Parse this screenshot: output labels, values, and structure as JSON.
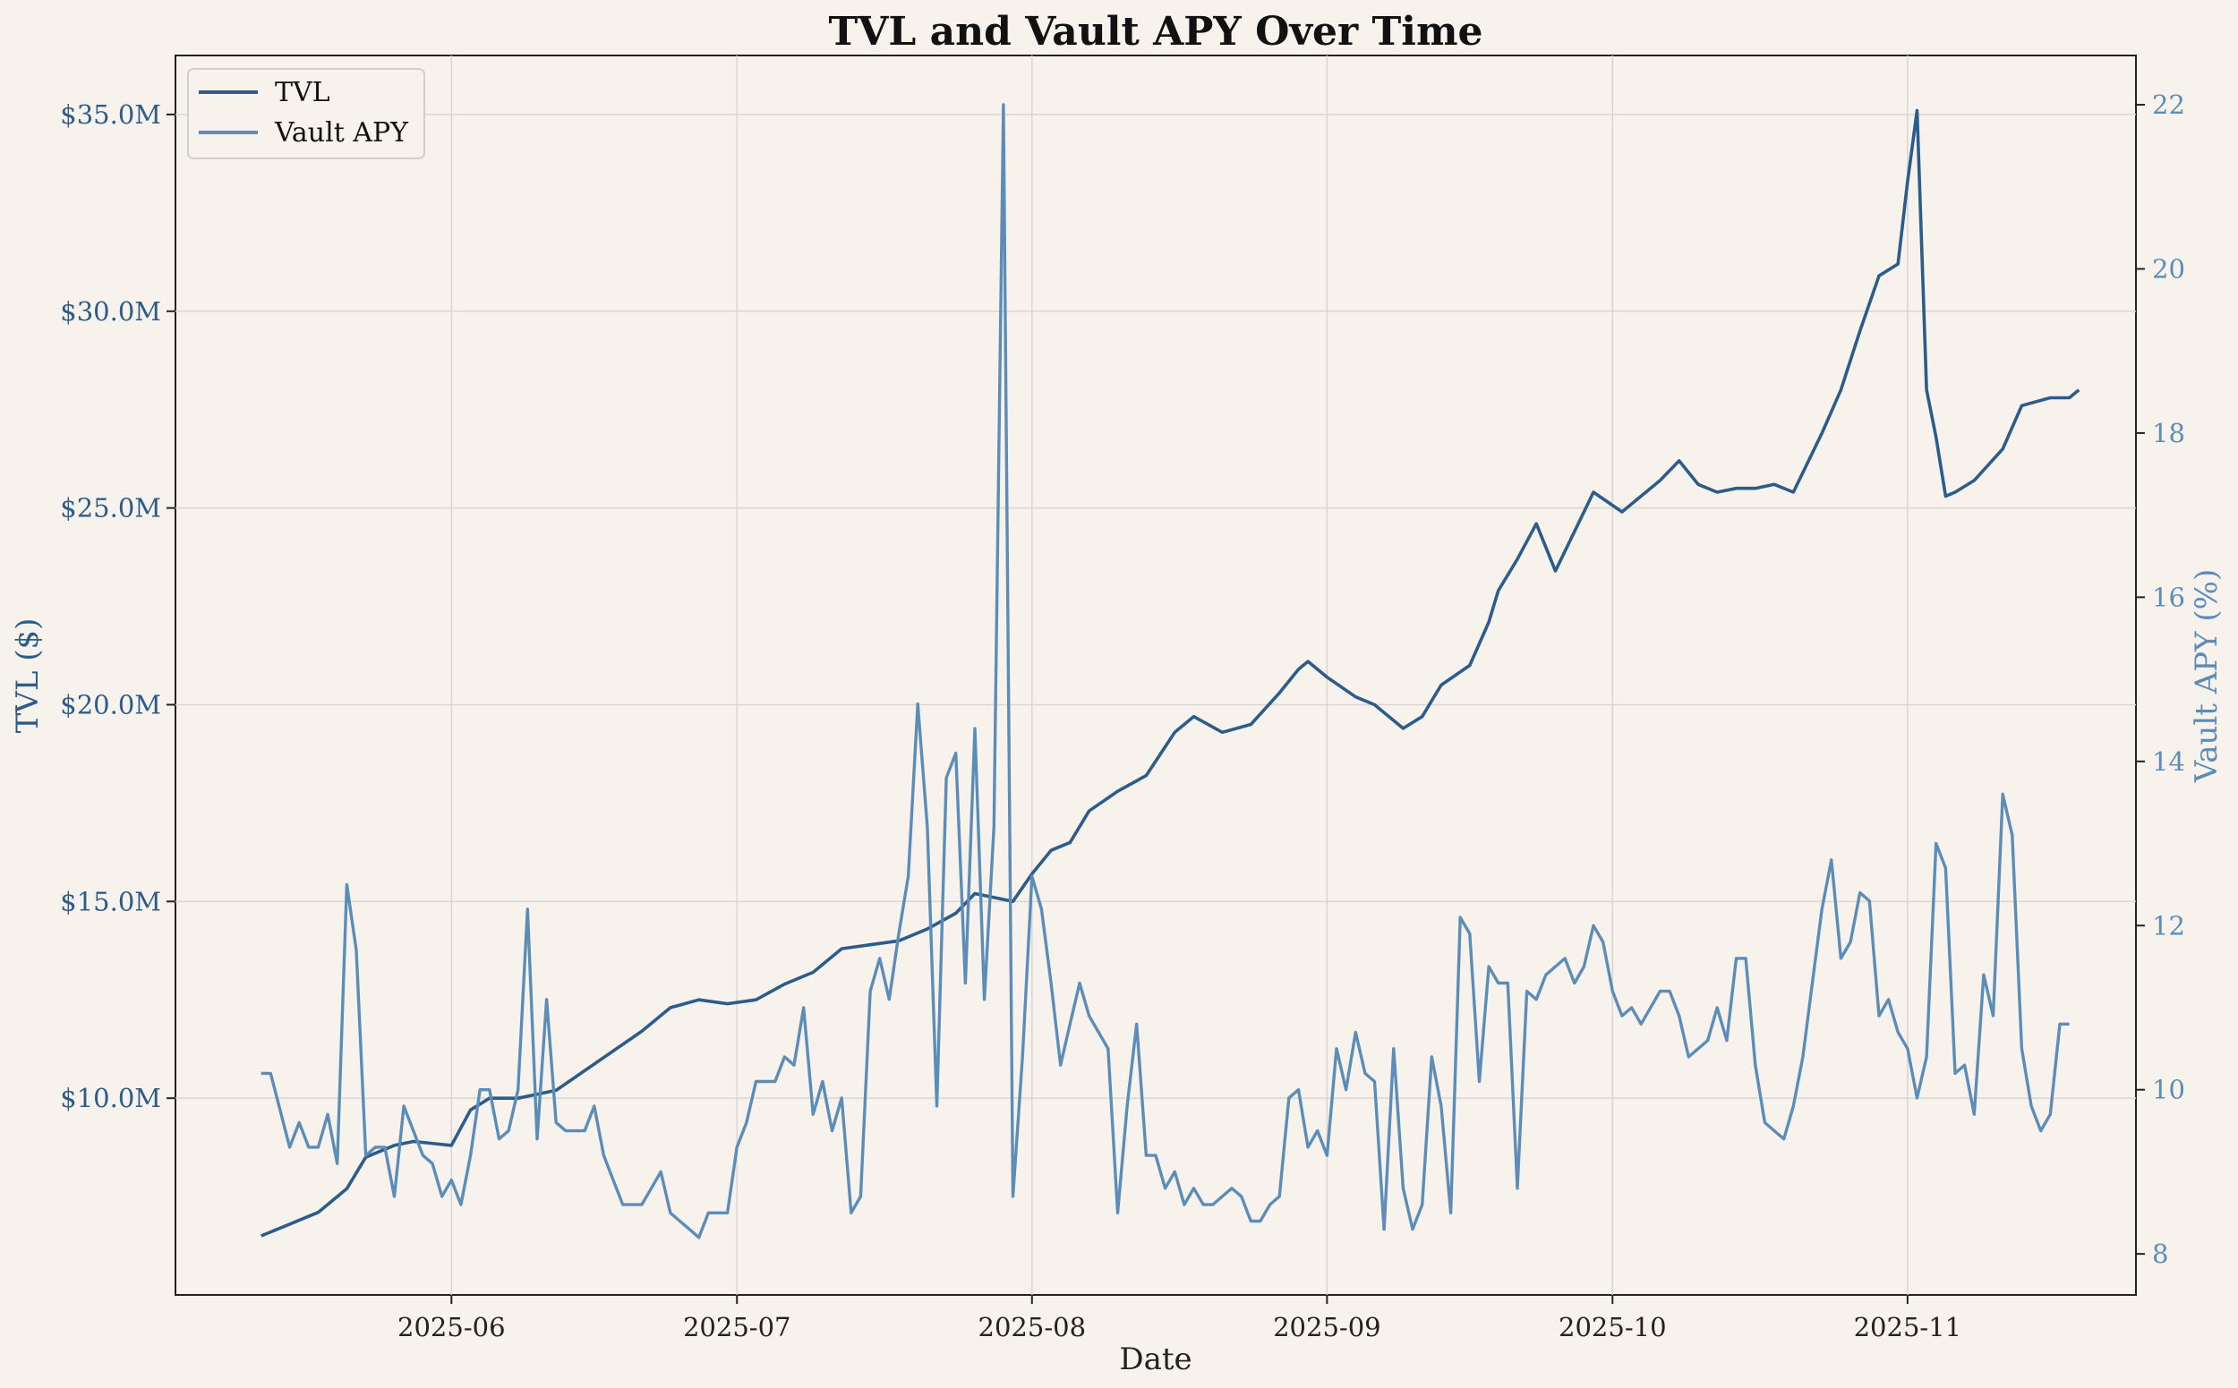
{
  "chart_data": {
    "type": "line",
    "title": "TVL and Vault APY Over Time",
    "xlabel": "Date",
    "ylabel_left": "TVL ($)",
    "ylabel_right": "Vault APY (%)",
    "xlim": [
      "2025-05-03",
      "2025-11-25"
    ],
    "ylim_left": [
      5000000,
      36500000
    ],
    "ylim_right": [
      7.5,
      22.6
    ],
    "x_ticks": [
      "2025-06",
      "2025-07",
      "2025-08",
      "2025-09",
      "2025-10",
      "2025-11"
    ],
    "y_ticks_left": [
      "$10.0M",
      "$15.0M",
      "$20.0M",
      "$25.0M",
      "$30.0M",
      "$35.0M"
    ],
    "y_ticks_left_values": [
      10000000,
      15000000,
      20000000,
      25000000,
      30000000,
      35000000
    ],
    "y_ticks_right": [
      "8",
      "10",
      "12",
      "14",
      "16",
      "18",
      "20",
      "22"
    ],
    "y_ticks_right_values": [
      8,
      10,
      12,
      14,
      16,
      18,
      20,
      22
    ],
    "grid": true,
    "legend": "top-left",
    "colors": {
      "tvl": "#2b5c8a",
      "apy": "#5b8db8",
      "background": "#f7f2ec",
      "text_left": "#2b5c8a",
      "text_right": "#5b8db8"
    },
    "series": [
      {
        "name": "TVL",
        "axis": "left",
        "x": [
          "2025-05-12",
          "2025-05-15",
          "2025-05-18",
          "2025-05-21",
          "2025-05-23",
          "2025-05-26",
          "2025-05-28",
          "2025-06-01",
          "2025-06-03",
          "2025-06-05",
          "2025-06-08",
          "2025-06-12",
          "2025-06-15",
          "2025-06-18",
          "2025-06-21",
          "2025-06-24",
          "2025-06-27",
          "2025-06-30",
          "2025-07-03",
          "2025-07-06",
          "2025-07-09",
          "2025-07-12",
          "2025-07-15",
          "2025-07-18",
          "2025-07-21",
          "2025-07-24",
          "2025-07-26",
          "2025-07-28",
          "2025-07-30",
          "2025-08-01",
          "2025-08-03",
          "2025-08-05",
          "2025-08-07",
          "2025-08-10",
          "2025-08-13",
          "2025-08-16",
          "2025-08-18",
          "2025-08-21",
          "2025-08-24",
          "2025-08-27",
          "2025-08-29",
          "2025-08-30",
          "2025-09-01",
          "2025-09-04",
          "2025-09-06",
          "2025-09-09",
          "2025-09-11",
          "2025-09-13",
          "2025-09-16",
          "2025-09-18",
          "2025-09-19",
          "2025-09-21",
          "2025-09-23",
          "2025-09-25",
          "2025-09-27",
          "2025-09-29",
          "2025-10-02",
          "2025-10-04",
          "2025-10-06",
          "2025-10-08",
          "2025-10-10",
          "2025-10-12",
          "2025-10-14",
          "2025-10-16",
          "2025-10-18",
          "2025-10-20",
          "2025-10-23",
          "2025-10-25",
          "2025-10-27",
          "2025-10-29",
          "2025-10-31",
          "2025-11-01",
          "2025-11-02",
          "2025-11-03",
          "2025-11-04",
          "2025-11-05",
          "2025-11-06",
          "2025-11-08",
          "2025-11-11",
          "2025-11-13",
          "2025-11-16",
          "2025-11-18",
          "2025-11-19"
        ],
        "values": [
          6500000,
          6800000,
          7100000,
          7700000,
          8500000,
          8800000,
          8900000,
          8800000,
          9700000,
          10000000,
          10000000,
          10200000,
          10700000,
          11200000,
          11700000,
          12300000,
          12500000,
          12400000,
          12500000,
          12900000,
          13200000,
          13800000,
          13900000,
          14000000,
          14300000,
          14700000,
          15200000,
          15100000,
          15000000,
          15700000,
          16300000,
          16500000,
          17300000,
          17800000,
          18200000,
          19300000,
          19700000,
          19300000,
          19500000,
          20300000,
          20900000,
          21100000,
          20700000,
          20200000,
          20000000,
          19400000,
          19700000,
          20500000,
          21000000,
          22100000,
          22900000,
          23700000,
          24600000,
          23400000,
          24400000,
          25400000,
          24900000,
          25300000,
          25700000,
          26200000,
          25600000,
          25400000,
          25500000,
          25500000,
          25600000,
          25400000,
          26900000,
          28000000,
          29500000,
          30900000,
          31200000,
          33300000,
          35100000,
          28000000,
          26800000,
          25300000,
          25400000,
          25700000,
          26500000,
          27600000,
          27800000,
          27800000,
          28000000
        ]
      },
      {
        "name": "Vault APY",
        "axis": "right",
        "x": [
          "2025-05-12",
          "2025-05-13",
          "2025-05-15",
          "2025-05-16",
          "2025-05-17",
          "2025-05-18",
          "2025-05-19",
          "2025-05-20",
          "2025-05-21",
          "2025-05-22",
          "2025-05-23",
          "2025-05-24",
          "2025-05-25",
          "2025-05-26",
          "2025-05-27",
          "2025-05-28",
          "2025-05-29",
          "2025-05-30",
          "2025-05-31",
          "2025-06-01",
          "2025-06-02",
          "2025-06-03",
          "2025-06-04",
          "2025-06-05",
          "2025-06-06",
          "2025-06-07",
          "2025-06-08",
          "2025-06-09",
          "2025-06-10",
          "2025-06-11",
          "2025-06-12",
          "2025-06-13",
          "2025-06-14",
          "2025-06-15",
          "2025-06-16",
          "2025-06-17",
          "2025-06-18",
          "2025-06-19",
          "2025-06-20",
          "2025-06-21",
          "2025-06-22",
          "2025-06-23",
          "2025-06-24",
          "2025-06-25",
          "2025-06-26",
          "2025-06-27",
          "2025-06-28",
          "2025-06-29",
          "2025-06-30",
          "2025-07-01",
          "2025-07-02",
          "2025-07-03",
          "2025-07-04",
          "2025-07-05",
          "2025-07-06",
          "2025-07-07",
          "2025-07-08",
          "2025-07-09",
          "2025-07-10",
          "2025-07-11",
          "2025-07-12",
          "2025-07-13",
          "2025-07-14",
          "2025-07-15",
          "2025-07-16",
          "2025-07-17",
          "2025-07-18",
          "2025-07-19",
          "2025-07-20",
          "2025-07-21",
          "2025-07-22",
          "2025-07-23",
          "2025-07-24",
          "2025-07-25",
          "2025-07-26",
          "2025-07-27",
          "2025-07-28",
          "2025-07-29",
          "2025-07-30",
          "2025-07-31",
          "2025-08-01",
          "2025-08-02",
          "2025-08-03",
          "2025-08-04",
          "2025-08-05",
          "2025-08-06",
          "2025-08-07",
          "2025-08-08",
          "2025-08-09",
          "2025-08-10",
          "2025-08-11",
          "2025-08-12",
          "2025-08-13",
          "2025-08-14",
          "2025-08-15",
          "2025-08-16",
          "2025-08-17",
          "2025-08-18",
          "2025-08-19",
          "2025-08-20",
          "2025-08-21",
          "2025-08-22",
          "2025-08-23",
          "2025-08-24",
          "2025-08-25",
          "2025-08-26",
          "2025-08-27",
          "2025-08-28",
          "2025-08-29",
          "2025-08-30",
          "2025-08-31",
          "2025-09-01",
          "2025-09-02",
          "2025-09-03",
          "2025-09-04",
          "2025-09-05",
          "2025-09-06",
          "2025-09-07",
          "2025-09-08",
          "2025-09-09",
          "2025-09-10",
          "2025-09-11",
          "2025-09-12",
          "2025-09-13",
          "2025-09-14",
          "2025-09-15",
          "2025-09-16",
          "2025-09-17",
          "2025-09-18",
          "2025-09-19",
          "2025-09-20",
          "2025-09-21",
          "2025-09-22",
          "2025-09-23",
          "2025-09-24",
          "2025-09-25",
          "2025-09-26",
          "2025-09-27",
          "2025-09-28",
          "2025-09-29",
          "2025-09-30",
          "2025-10-01",
          "2025-10-02",
          "2025-10-03",
          "2025-10-04",
          "2025-10-05",
          "2025-10-06",
          "2025-10-07",
          "2025-10-08",
          "2025-10-09",
          "2025-10-10",
          "2025-10-11",
          "2025-10-12",
          "2025-10-13",
          "2025-10-14",
          "2025-10-15",
          "2025-10-16",
          "2025-10-17",
          "2025-10-18",
          "2025-10-19",
          "2025-10-20",
          "2025-10-21",
          "2025-10-22",
          "2025-10-23",
          "2025-10-24",
          "2025-10-25",
          "2025-10-26",
          "2025-10-27",
          "2025-10-28",
          "2025-10-29",
          "2025-10-30",
          "2025-10-31",
          "2025-11-01",
          "2025-11-02",
          "2025-11-03",
          "2025-11-04",
          "2025-11-05",
          "2025-11-06",
          "2025-11-07",
          "2025-11-08",
          "2025-11-09",
          "2025-11-10",
          "2025-11-11",
          "2025-11-12",
          "2025-11-13",
          "2025-11-14",
          "2025-11-15",
          "2025-11-16",
          "2025-11-17",
          "2025-11-18"
        ],
        "values": [
          10.2,
          10.2,
          9.3,
          9.6,
          9.3,
          9.3,
          9.7,
          9.1,
          12.5,
          11.7,
          9.2,
          9.3,
          9.3,
          8.7,
          9.8,
          9.5,
          9.2,
          9.1,
          8.7,
          8.9,
          8.6,
          9.2,
          10,
          10,
          9.4,
          9.5,
          10,
          12.2,
          9.4,
          11.1,
          9.6,
          9.5,
          9.5,
          9.5,
          9.8,
          9.2,
          8.9,
          8.6,
          8.6,
          8.6,
          8.8,
          9,
          8.5,
          8.4,
          8.3,
          8.2,
          8.5,
          8.5,
          8.5,
          9.3,
          9.6,
          10.1,
          10.1,
          10.1,
          10.4,
          10.3,
          11,
          9.7,
          10.1,
          9.5,
          9.9,
          8.5,
          8.7,
          11.2,
          11.6,
          11.1,
          11.9,
          12.6,
          14.7,
          13.2,
          9.8,
          13.8,
          14.1,
          11.3,
          14.4,
          11.1,
          13.2,
          22,
          8.7,
          10.4,
          12.6,
          12.2,
          11.3,
          10.3,
          10.8,
          11.3,
          10.9,
          10.7,
          10.5,
          8.5,
          9.8,
          10.8,
          9.2,
          9.2,
          8.8,
          9,
          8.6,
          8.8,
          8.6,
          8.6,
          8.7,
          8.8,
          8.7,
          8.4,
          8.4,
          8.6,
          8.7,
          9.9,
          10,
          9.3,
          9.5,
          9.2,
          10.5,
          10,
          10.7,
          10.2,
          10.1,
          8.3,
          10.5,
          8.8,
          8.3,
          8.6,
          10.4,
          9.8,
          8.5,
          12.1,
          11.9,
          10.1,
          11.5,
          11.3,
          11.3,
          8.8,
          11.2,
          11.1,
          11.4,
          11.5,
          11.6,
          11.3,
          11.5,
          12,
          11.8,
          11.2,
          10.9,
          11,
          10.8,
          11,
          11.2,
          11.2,
          10.9,
          10.4,
          10.5,
          10.6,
          11,
          10.6,
          11.6,
          11.6,
          10.3,
          9.6,
          9.5,
          9.4,
          9.8,
          10.4,
          11.3,
          12.2,
          12.8,
          11.6,
          11.8,
          12.4,
          12.3,
          10.9,
          11.1,
          10.7,
          10.5,
          9.9,
          10.4,
          13,
          12.7,
          10.2,
          10.3,
          9.7,
          11.4,
          10.9,
          13.6,
          13.1,
          10.5,
          9.8,
          9.5,
          9.7,
          10.8,
          10.8
        ]
      }
    ]
  }
}
